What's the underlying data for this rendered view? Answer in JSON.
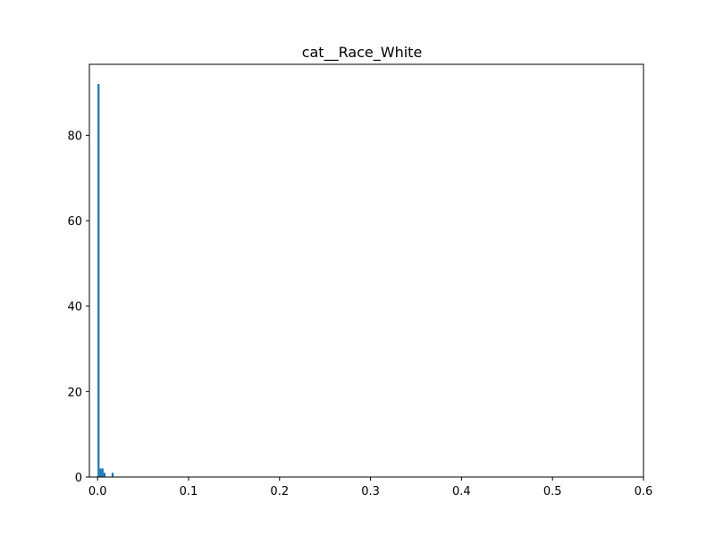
{
  "chart_data": {
    "type": "bar",
    "title": "cat__Race_White",
    "xlabel": "",
    "ylabel": "",
    "xlim": [
      -0.009,
      0.6
    ],
    "ylim": [
      0,
      96.6
    ],
    "x_ticks": [
      0.0,
      0.1,
      0.2,
      0.3,
      0.4,
      0.5,
      0.6
    ],
    "x_tick_labels": [
      "0.0",
      "0.1",
      "0.2",
      "0.3",
      "0.4",
      "0.5",
      "0.6"
    ],
    "y_ticks": [
      0,
      20,
      40,
      60,
      80
    ],
    "y_tick_labels": [
      "0",
      "20",
      "40",
      "60",
      "80"
    ],
    "bar_color": "#1f77b4",
    "bins": [
      {
        "x0": 0.0,
        "x1": 0.0022,
        "count": 92
      },
      {
        "x0": 0.0022,
        "x1": 0.0044,
        "count": 2
      },
      {
        "x0": 0.0044,
        "x1": 0.0066,
        "count": 2
      },
      {
        "x0": 0.0066,
        "x1": 0.0088,
        "count": 1
      },
      {
        "x0": 0.0154,
        "x1": 0.0176,
        "count": 1
      }
    ]
  }
}
